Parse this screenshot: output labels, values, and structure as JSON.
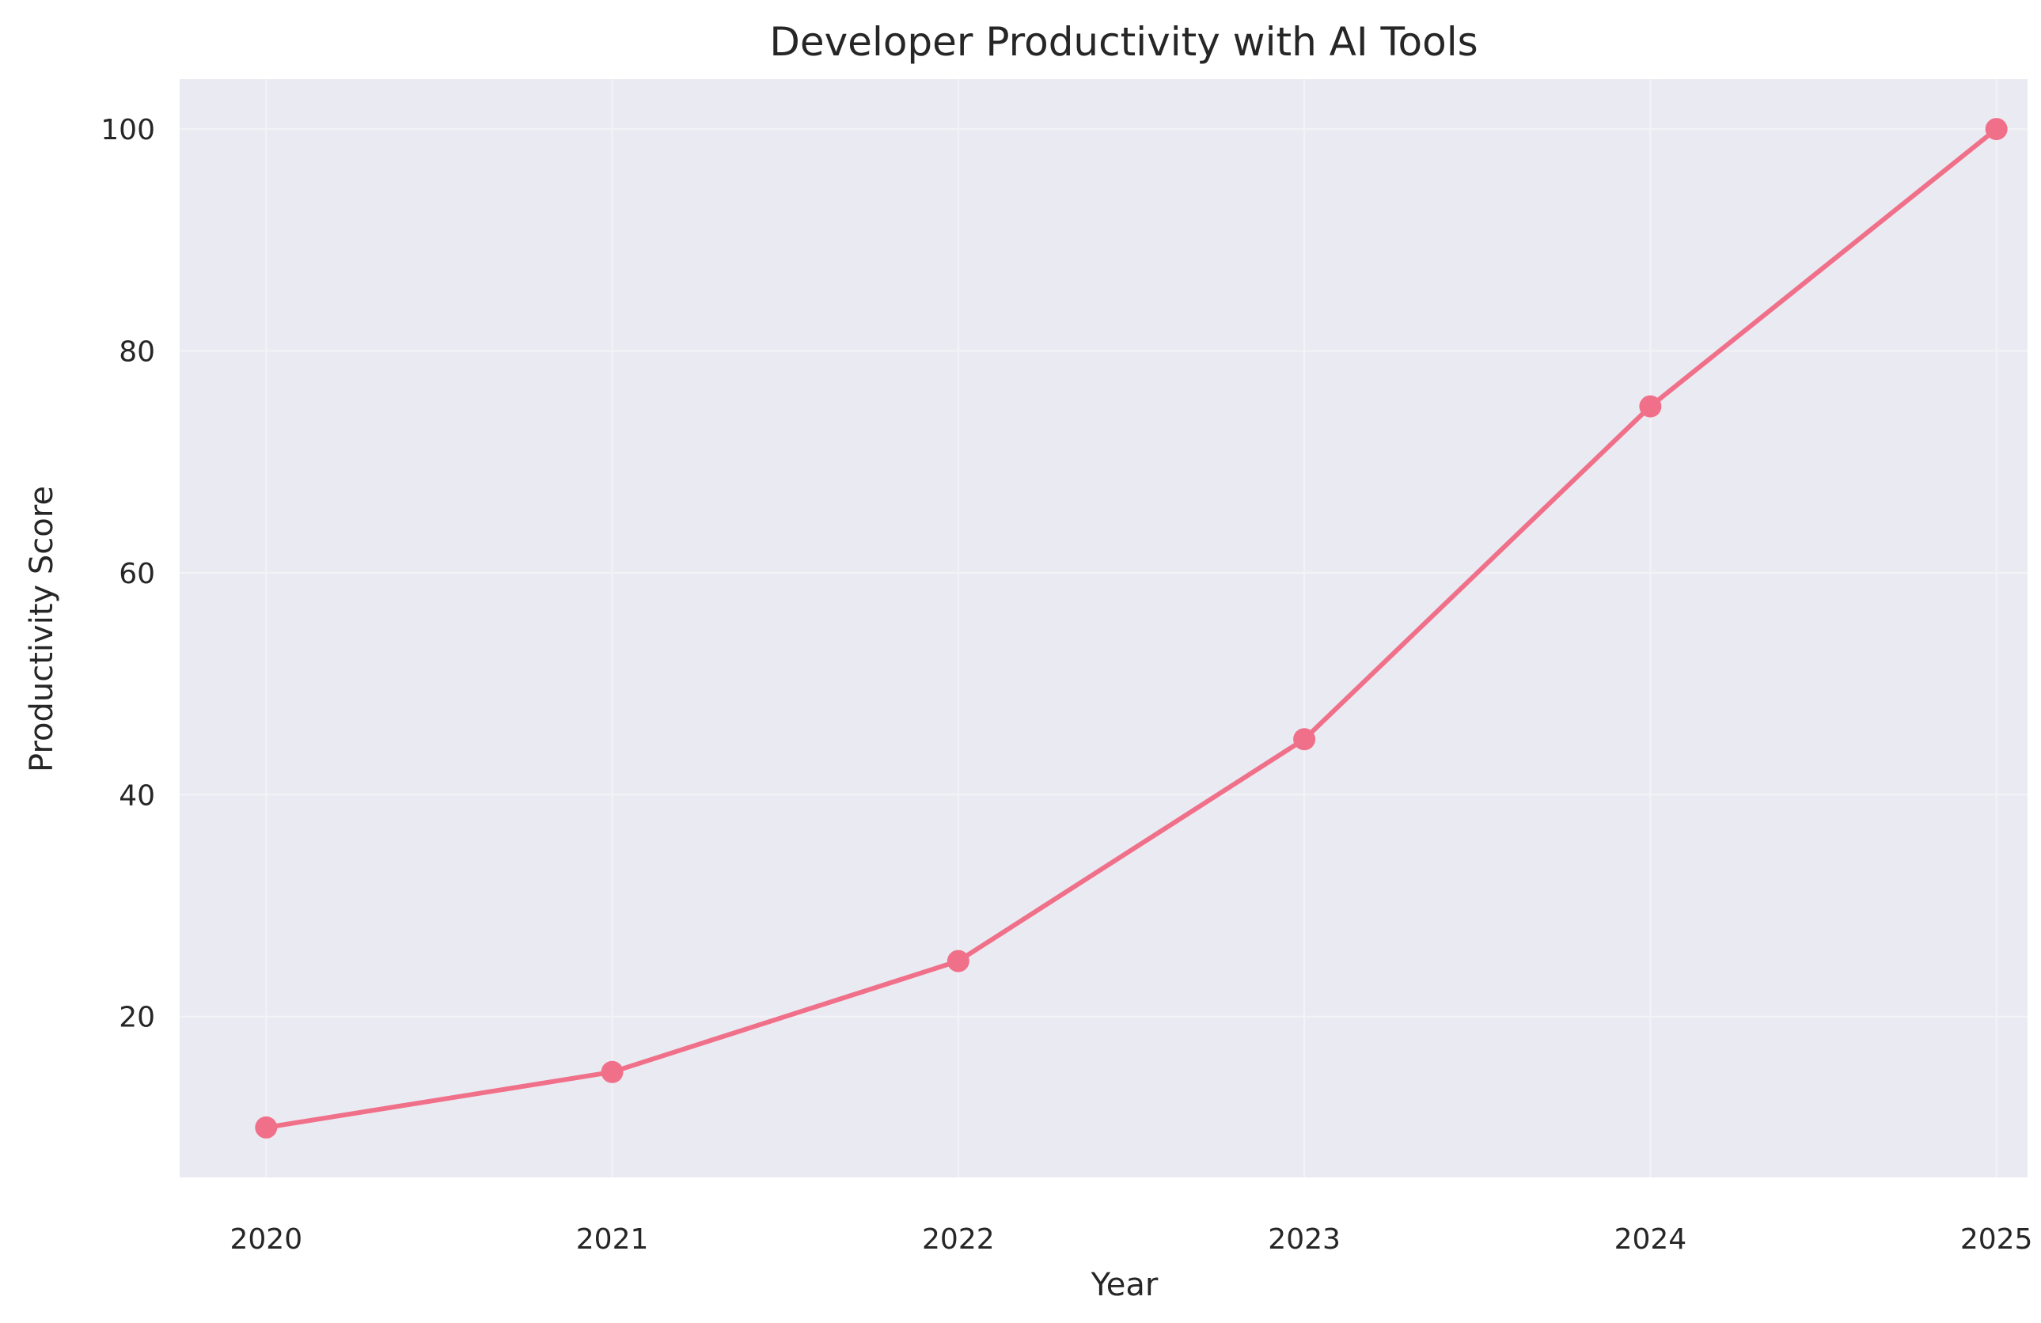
{
  "colors": {
    "plot_background": "#EAEAF2",
    "gridline": "#F3F3F7",
    "series_line": "#F0708A",
    "text": "#262626"
  },
  "chart_data": {
    "type": "line",
    "title": "Developer Productivity with AI Tools",
    "xlabel": "Year",
    "ylabel": "Productivity Score",
    "x": [
      "2020",
      "2021",
      "2022",
      "2023",
      "2024",
      "2025"
    ],
    "series": [
      {
        "values": [
          10,
          15,
          25,
          45,
          75,
          100
        ],
        "marker": "circle"
      }
    ],
    "xlim": [
      2019.75,
      2025.09
    ],
    "ylim": [
      5.5,
      104.5
    ],
    "yticks": [
      20,
      40,
      60,
      80,
      100
    ],
    "grid": true,
    "legend": "none"
  }
}
